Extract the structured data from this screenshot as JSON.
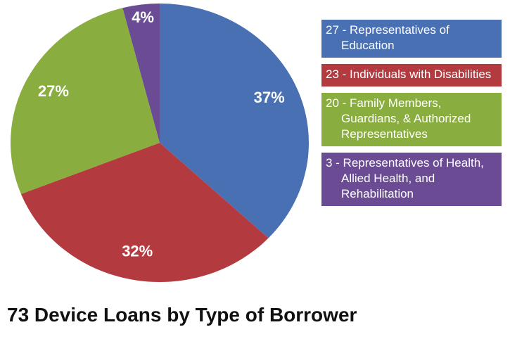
{
  "chart_data": {
    "type": "pie",
    "title": "73 Device Loans by Type of Borrower",
    "categories": [
      "27 - Representatives of Education",
      "23 - Individuals with Disabilities",
      "20 - Family Members, Guardians, & Authorized Representatives",
      "3 - Representatives of Health, Allied Health, and Rehabilitation"
    ],
    "values": [
      37,
      32,
      27,
      4
    ],
    "value_labels": [
      "37%",
      "32%",
      "27%",
      "4%"
    ],
    "colors": [
      "#4a70b4",
      "#b33a3f",
      "#89ad3f",
      "#6a4b94"
    ],
    "legend": "right"
  }
}
